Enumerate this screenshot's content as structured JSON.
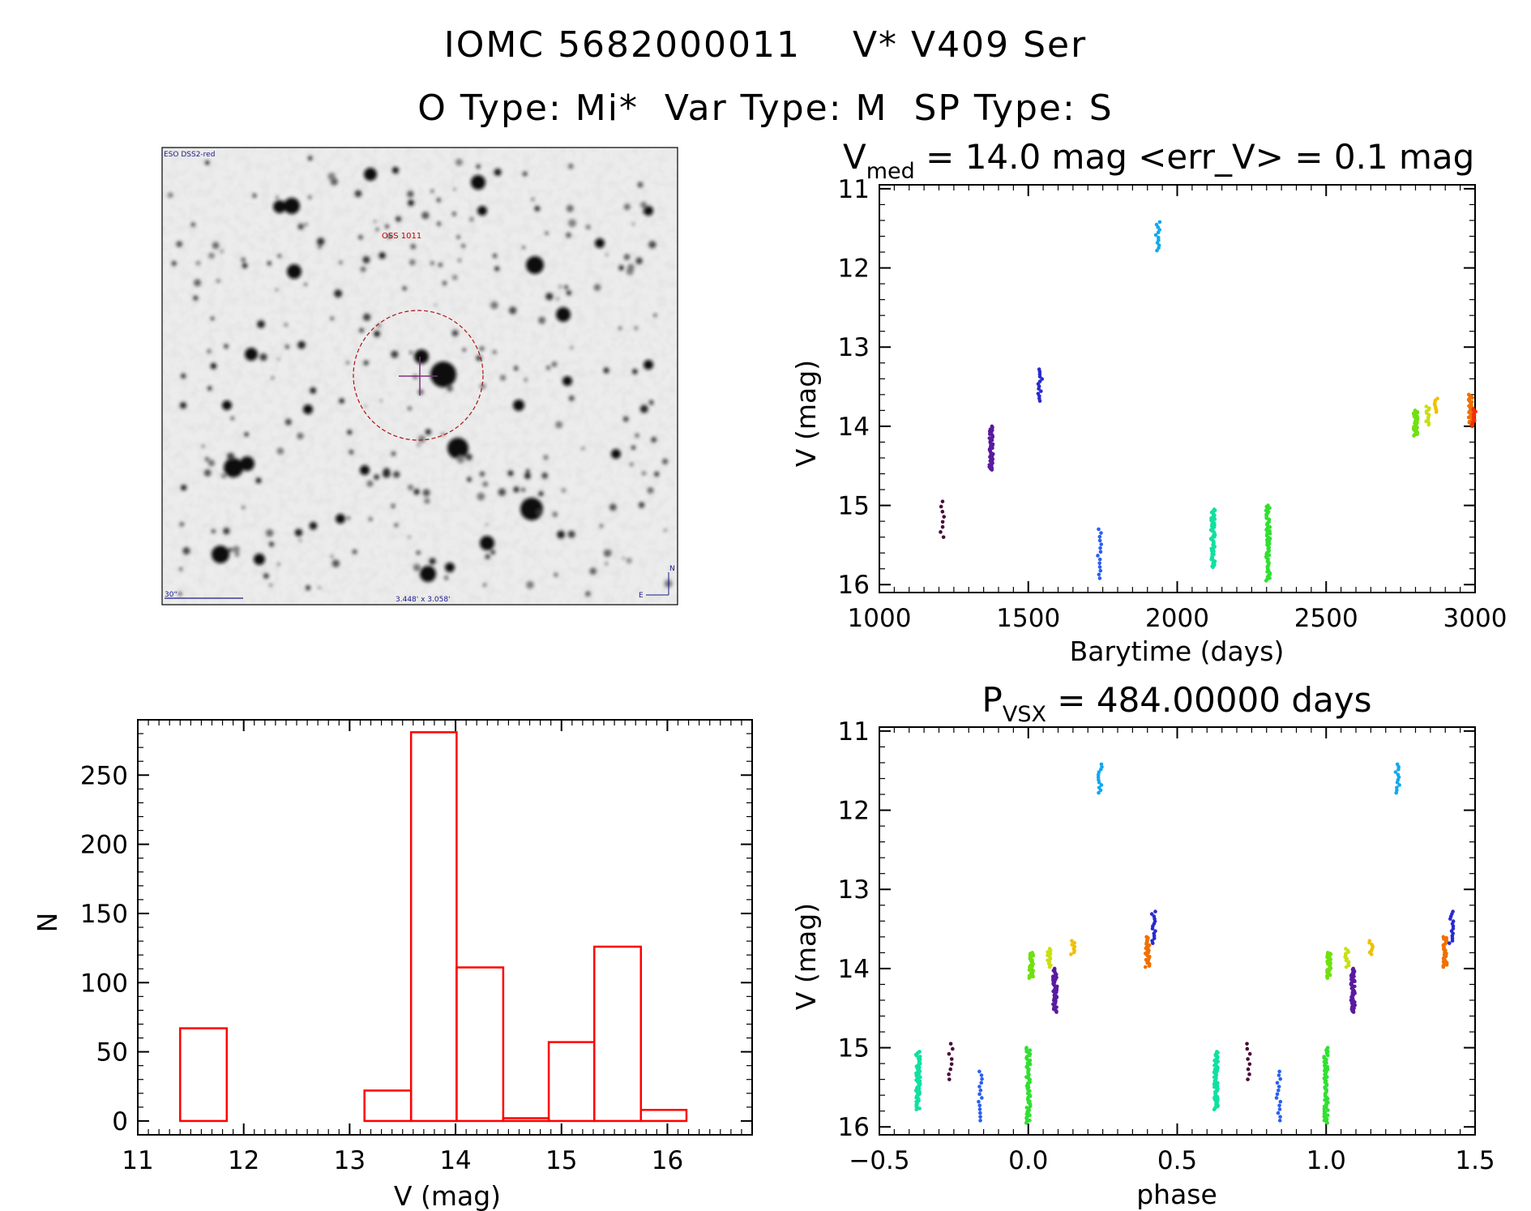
{
  "header": {
    "title_line1": "IOMC 5682000011    V* V409 Ser",
    "title_line2": "O Type: Mi*  Var Type: M  SP Type: S"
  },
  "finder_chart": {
    "survey_label": "ESO DSS2-red",
    "object_label": "OSS 1011",
    "scale_label": "30\"",
    "fov_label": "3.448' x 3.058'",
    "compass_n": "N",
    "compass_e": "E"
  },
  "chart_data": [
    {
      "type": "scatter",
      "name": "light-curve",
      "title_main": "V",
      "title_sub": "med",
      "title_rest": " = 14.0 mag <err_V> = 0.1 mag",
      "xlabel": "Barytime (days)",
      "ylabel": "V (mag)",
      "xlim": [
        1000,
        3000
      ],
      "ylim": [
        16.1,
        10.95
      ],
      "y_inverted": true,
      "xticks": [
        1000,
        1500,
        2000,
        2500,
        3000
      ],
      "yticks": [
        11,
        12,
        13,
        14,
        15,
        16
      ],
      "groups": [
        {
          "color": "#4a0a3a",
          "x": 1210,
          "y_min": 14.95,
          "y_max": 15.4,
          "n": 8
        },
        {
          "color": "#5a1aa0",
          "x": 1375,
          "y_min": 14.0,
          "y_max": 14.55,
          "n": 45
        },
        {
          "color": "#2a2ad0",
          "x": 1540,
          "y_min": 13.28,
          "y_max": 13.68,
          "n": 14
        },
        {
          "color": "#2a60f0",
          "x": 1740,
          "y_min": 15.3,
          "y_max": 15.92,
          "n": 14
        },
        {
          "color": "#10a8f0",
          "x": 1935,
          "y_min": 11.42,
          "y_max": 11.78,
          "n": 12
        },
        {
          "color": "#10e0a0",
          "x": 2120,
          "y_min": 15.05,
          "y_max": 15.78,
          "n": 60
        },
        {
          "color": "#30e030",
          "x": 2305,
          "y_min": 15.0,
          "y_max": 15.95,
          "n": 60
        },
        {
          "color": "#70e010",
          "x": 2800,
          "y_min": 13.8,
          "y_max": 14.12,
          "n": 35
        },
        {
          "color": "#c8e010",
          "x": 2840,
          "y_min": 13.75,
          "y_max": 13.98,
          "n": 12
        },
        {
          "color": "#f0c000",
          "x": 2870,
          "y_min": 13.65,
          "y_max": 13.82,
          "n": 8
        },
        {
          "color": "#f07000",
          "x": 2985,
          "y_min": 13.6,
          "y_max": 13.98,
          "n": 30
        },
        {
          "color": "#f03000",
          "x": 2995,
          "y_min": 13.78,
          "y_max": 14.0,
          "n": 14
        }
      ]
    },
    {
      "type": "bar",
      "name": "histogram",
      "xlabel": "V (mag)",
      "ylabel": "N",
      "xlim": [
        11,
        16.8
      ],
      "ylim": [
        -10,
        290
      ],
      "xticks": [
        11,
        12,
        13,
        14,
        15,
        16
      ],
      "yticks": [
        0,
        50,
        100,
        150,
        200,
        250
      ],
      "bar_color": "#ff0000",
      "bin_edges": [
        11.4,
        11.84,
        12.27,
        12.71,
        13.14,
        13.58,
        14.01,
        14.45,
        14.88,
        15.31,
        15.75,
        16.18
      ],
      "counts": [
        67,
        0,
        0,
        0,
        22,
        281,
        111,
        2,
        57,
        126,
        8
      ]
    },
    {
      "type": "scatter",
      "name": "phased-curve",
      "title_main": "P",
      "title_sub": "VSX",
      "title_rest": " = 484.00000 days",
      "xlabel": "phase",
      "ylabel": "V (mag)",
      "xlim": [
        -0.5,
        1.5
      ],
      "ylim": [
        16.1,
        10.95
      ],
      "y_inverted": true,
      "xticks": [
        -0.5,
        0.0,
        0.5,
        1.0,
        1.5
      ],
      "ytick_labels": [
        "11",
        "12",
        "13",
        "14",
        "15",
        "16"
      ],
      "xtick_labels": [
        "−0.5",
        "0.0",
        "0.5",
        "1.0",
        "1.5"
      ],
      "yticks": [
        11,
        12,
        13,
        14,
        15,
        16
      ],
      "groups": [
        {
          "color": "#10e0a0",
          "x": -0.37,
          "y_min": 15.05,
          "y_max": 15.78,
          "n": 60
        },
        {
          "color": "#4a0a3a",
          "x": -0.26,
          "y_min": 14.95,
          "y_max": 15.4,
          "n": 8
        },
        {
          "color": "#2a60f0",
          "x": -0.16,
          "y_min": 15.3,
          "y_max": 15.92,
          "n": 14
        },
        {
          "color": "#30e030",
          "x": 0.0,
          "y_min": 15.0,
          "y_max": 15.95,
          "n": 60
        },
        {
          "color": "#70e010",
          "x": 0.01,
          "y_min": 13.8,
          "y_max": 14.12,
          "n": 35
        },
        {
          "color": "#5a1aa0",
          "x": 0.09,
          "y_min": 14.0,
          "y_max": 14.55,
          "n": 45
        },
        {
          "color": "#c8e010",
          "x": 0.07,
          "y_min": 13.75,
          "y_max": 13.98,
          "n": 12
        },
        {
          "color": "#f0c000",
          "x": 0.15,
          "y_min": 13.65,
          "y_max": 13.82,
          "n": 8
        },
        {
          "color": "#10a8f0",
          "x": 0.24,
          "y_min": 11.42,
          "y_max": 11.78,
          "n": 12
        },
        {
          "color": "#f07000",
          "x": 0.4,
          "y_min": 13.6,
          "y_max": 13.98,
          "n": 30
        },
        {
          "color": "#2a2ad0",
          "x": 0.42,
          "y_min": 13.28,
          "y_max": 13.68,
          "n": 14
        },
        {
          "color": "#10e0a0",
          "x": 0.63,
          "y_min": 15.05,
          "y_max": 15.78,
          "n": 60
        },
        {
          "color": "#4a0a3a",
          "x": 0.74,
          "y_min": 14.95,
          "y_max": 15.4,
          "n": 8
        },
        {
          "color": "#2a60f0",
          "x": 0.84,
          "y_min": 15.3,
          "y_max": 15.92,
          "n": 14
        },
        {
          "color": "#30e030",
          "x": 1.0,
          "y_min": 15.0,
          "y_max": 15.95,
          "n": 60
        },
        {
          "color": "#70e010",
          "x": 1.01,
          "y_min": 13.8,
          "y_max": 14.12,
          "n": 35
        },
        {
          "color": "#5a1aa0",
          "x": 1.09,
          "y_min": 14.0,
          "y_max": 14.55,
          "n": 45
        },
        {
          "color": "#c8e010",
          "x": 1.07,
          "y_min": 13.75,
          "y_max": 13.98,
          "n": 12
        },
        {
          "color": "#f0c000",
          "x": 1.15,
          "y_min": 13.65,
          "y_max": 13.82,
          "n": 8
        },
        {
          "color": "#10a8f0",
          "x": 1.24,
          "y_min": 11.42,
          "y_max": 11.78,
          "n": 12
        },
        {
          "color": "#f07000",
          "x": 1.4,
          "y_min": 13.6,
          "y_max": 13.98,
          "n": 30
        },
        {
          "color": "#2a2ad0",
          "x": 1.42,
          "y_min": 13.28,
          "y_max": 13.68,
          "n": 14
        }
      ]
    }
  ]
}
